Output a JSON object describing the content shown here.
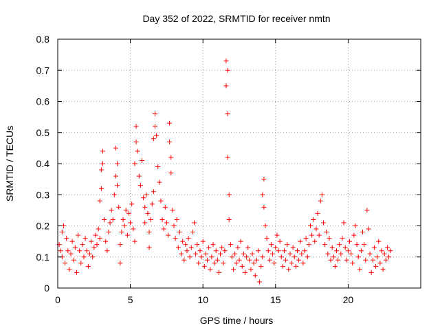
{
  "chart_data": {
    "type": "scatter",
    "title": "Day 352 of 2022, SRMTID for receiver nmtn",
    "xlabel": "GPS time / hours",
    "ylabel": "SRMTID / TECUs",
    "xlim": [
      0,
      25
    ],
    "ylim": [
      0,
      0.8
    ],
    "x_ticks": [
      0,
      5,
      10,
      15,
      20
    ],
    "x_tick_labels": [
      "0",
      "5",
      "10",
      "15",
      "20"
    ],
    "y_ticks": [
      0,
      0.1,
      0.2,
      0.3,
      0.4,
      0.5,
      0.6,
      0.7,
      0.8
    ],
    "y_tick_labels": [
      "0",
      "0.1",
      "0.2",
      "0.3",
      "0.4",
      "0.5",
      "0.6",
      "0.7",
      "0.8"
    ],
    "grid": true,
    "marker": "plus",
    "color": "#ff0000",
    "series": [
      {
        "name": "SRMTID",
        "points": [
          [
            0.1,
            0.14
          ],
          [
            0.2,
            0.12
          ],
          [
            0.3,
            0.1
          ],
          [
            0.3,
            0.18
          ],
          [
            0.4,
            0.2
          ],
          [
            0.5,
            0.08
          ],
          [
            0.6,
            0.16
          ],
          [
            0.7,
            0.12
          ],
          [
            0.8,
            0.06
          ],
          [
            0.9,
            0.11
          ],
          [
            1.0,
            0.15
          ],
          [
            1.1,
            0.09
          ],
          [
            1.2,
            0.13
          ],
          [
            1.3,
            0.05
          ],
          [
            1.4,
            0.17
          ],
          [
            1.5,
            0.12
          ],
          [
            1.6,
            0.08
          ],
          [
            1.7,
            0.14
          ],
          [
            1.8,
            0.1
          ],
          [
            1.9,
            0.16
          ],
          [
            2.0,
            0.12
          ],
          [
            2.1,
            0.07
          ],
          [
            2.2,
            0.11
          ],
          [
            2.3,
            0.15
          ],
          [
            2.4,
            0.1
          ],
          [
            2.5,
            0.13
          ],
          [
            2.6,
            0.17
          ],
          [
            2.7,
            0.14
          ],
          [
            2.8,
            0.19
          ],
          [
            2.9,
            0.16
          ],
          [
            2.9,
            0.28
          ],
          [
            3.0,
            0.32
          ],
          [
            3.0,
            0.38
          ],
          [
            3.1,
            0.44
          ],
          [
            3.1,
            0.4
          ],
          [
            3.2,
            0.22
          ],
          [
            3.3,
            0.15
          ],
          [
            3.4,
            0.12
          ],
          [
            3.5,
            0.18
          ],
          [
            3.6,
            0.21
          ],
          [
            3.7,
            0.25
          ],
          [
            3.8,
            0.22
          ],
          [
            3.9,
            0.3
          ],
          [
            4.0,
            0.36
          ],
          [
            4.0,
            0.45
          ],
          [
            4.1,
            0.4
          ],
          [
            4.1,
            0.33
          ],
          [
            4.2,
            0.26
          ],
          [
            4.3,
            0.14
          ],
          [
            4.3,
            0.08
          ],
          [
            4.4,
            0.18
          ],
          [
            4.5,
            0.22
          ],
          [
            4.6,
            0.2
          ],
          [
            4.7,
            0.25
          ],
          [
            4.8,
            0.17
          ],
          [
            4.9,
            0.24
          ],
          [
            5.0,
            0.21
          ],
          [
            5.1,
            0.27
          ],
          [
            5.2,
            0.19
          ],
          [
            5.3,
            0.15
          ],
          [
            5.3,
            0.4
          ],
          [
            5.4,
            0.47
          ],
          [
            5.4,
            0.52
          ],
          [
            5.5,
            0.44
          ],
          [
            5.6,
            0.36
          ],
          [
            5.7,
            0.33
          ],
          [
            5.8,
            0.41
          ],
          [
            5.9,
            0.29
          ],
          [
            6.0,
            0.26
          ],
          [
            6.0,
            0.21
          ],
          [
            6.1,
            0.3
          ],
          [
            6.2,
            0.24
          ],
          [
            6.3,
            0.18
          ],
          [
            6.3,
            0.13
          ],
          [
            6.4,
            0.22
          ],
          [
            6.5,
            0.27
          ],
          [
            6.6,
            0.31
          ],
          [
            6.6,
            0.48
          ],
          [
            6.7,
            0.56
          ],
          [
            6.7,
            0.52
          ],
          [
            6.8,
            0.49
          ],
          [
            6.9,
            0.39
          ],
          [
            7.0,
            0.34
          ],
          [
            7.1,
            0.28
          ],
          [
            7.2,
            0.22
          ],
          [
            7.3,
            0.19
          ],
          [
            7.4,
            0.26
          ],
          [
            7.5,
            0.21
          ],
          [
            7.6,
            0.17
          ],
          [
            7.7,
            0.47
          ],
          [
            7.7,
            0.53
          ],
          [
            7.8,
            0.42
          ],
          [
            7.8,
            0.37
          ],
          [
            7.9,
            0.25
          ],
          [
            8.0,
            0.2
          ],
          [
            8.1,
            0.16
          ],
          [
            8.2,
            0.22
          ],
          [
            8.3,
            0.13
          ],
          [
            8.4,
            0.18
          ],
          [
            8.5,
            0.11
          ],
          [
            8.6,
            0.15
          ],
          [
            8.7,
            0.09
          ],
          [
            8.8,
            0.14
          ],
          [
            8.9,
            0.12
          ],
          [
            9.0,
            0.16
          ],
          [
            9.1,
            0.1
          ],
          [
            9.2,
            0.13
          ],
          [
            9.3,
            0.18
          ],
          [
            9.4,
            0.21
          ],
          [
            9.5,
            0.11
          ],
          [
            9.6,
            0.14
          ],
          [
            9.7,
            0.08
          ],
          [
            9.8,
            0.12
          ],
          [
            9.9,
            0.1
          ],
          [
            10.0,
            0.15
          ],
          [
            10.1,
            0.07
          ],
          [
            10.2,
            0.11
          ],
          [
            10.3,
            0.09
          ],
          [
            10.4,
            0.13
          ],
          [
            10.5,
            0.06
          ],
          [
            10.6,
            0.1
          ],
          [
            10.7,
            0.14
          ],
          [
            10.8,
            0.08
          ],
          [
            10.9,
            0.12
          ],
          [
            11.0,
            0.09
          ],
          [
            11.1,
            0.05
          ],
          [
            11.2,
            0.11
          ],
          [
            11.3,
            0.13
          ],
          [
            11.4,
            0.08
          ],
          [
            11.5,
            0.12
          ],
          [
            11.6,
            0.65
          ],
          [
            11.6,
            0.73
          ],
          [
            11.7,
            0.7
          ],
          [
            11.7,
            0.56
          ],
          [
            11.7,
            0.42
          ],
          [
            11.8,
            0.3
          ],
          [
            11.8,
            0.22
          ],
          [
            11.9,
            0.14
          ],
          [
            12.0,
            0.1
          ],
          [
            12.1,
            0.06
          ],
          [
            12.2,
            0.11
          ],
          [
            12.3,
            0.08
          ],
          [
            12.4,
            0.13
          ],
          [
            12.5,
            0.09
          ],
          [
            12.6,
            0.15
          ],
          [
            12.7,
            0.07
          ],
          [
            12.8,
            0.11
          ],
          [
            12.9,
            0.05
          ],
          [
            13.0,
            0.1
          ],
          [
            13.1,
            0.13
          ],
          [
            13.2,
            0.09
          ],
          [
            13.3,
            0.06
          ],
          [
            13.4,
            0.11
          ],
          [
            13.5,
            0.08
          ],
          [
            13.6,
            0.04
          ],
          [
            13.7,
            0.09
          ],
          [
            13.8,
            0.12
          ],
          [
            13.9,
            0.02
          ],
          [
            14.0,
            0.07
          ],
          [
            14.1,
            0.1
          ],
          [
            14.1,
            0.3
          ],
          [
            14.2,
            0.35
          ],
          [
            14.2,
            0.26
          ],
          [
            14.3,
            0.2
          ],
          [
            14.4,
            0.16
          ],
          [
            14.5,
            0.12
          ],
          [
            14.6,
            0.09
          ],
          [
            14.7,
            0.14
          ],
          [
            14.8,
            0.11
          ],
          [
            14.9,
            0.08
          ],
          [
            15.0,
            0.13
          ],
          [
            15.1,
            0.17
          ],
          [
            15.2,
            0.12
          ],
          [
            15.3,
            0.15
          ],
          [
            15.4,
            0.1
          ],
          [
            15.5,
            0.07
          ],
          [
            15.6,
            0.12
          ],
          [
            15.7,
            0.09
          ],
          [
            15.8,
            0.14
          ],
          [
            15.9,
            0.06
          ],
          [
            16.0,
            0.11
          ],
          [
            16.1,
            0.08
          ],
          [
            16.2,
            0.13
          ],
          [
            16.3,
            0.1
          ],
          [
            16.4,
            0.07
          ],
          [
            16.5,
            0.12
          ],
          [
            16.6,
            0.09
          ],
          [
            16.7,
            0.15
          ],
          [
            16.8,
            0.11
          ],
          [
            16.9,
            0.08
          ],
          [
            17.0,
            0.12
          ],
          [
            17.1,
            0.16
          ],
          [
            17.2,
            0.1
          ],
          [
            17.3,
            0.14
          ],
          [
            17.4,
            0.2
          ],
          [
            17.5,
            0.17
          ],
          [
            17.6,
            0.22
          ],
          [
            17.7,
            0.15
          ],
          [
            17.8,
            0.19
          ],
          [
            17.9,
            0.24
          ],
          [
            18.0,
            0.17
          ],
          [
            18.1,
            0.28
          ],
          [
            18.2,
            0.3
          ],
          [
            18.3,
            0.21
          ],
          [
            18.4,
            0.14
          ],
          [
            18.5,
            0.18
          ],
          [
            18.6,
            0.11
          ],
          [
            18.7,
            0.16
          ],
          [
            18.8,
            0.09
          ],
          [
            18.9,
            0.13
          ],
          [
            19.0,
            0.1
          ],
          [
            19.1,
            0.07
          ],
          [
            19.2,
            0.12
          ],
          [
            19.3,
            0.09
          ],
          [
            19.4,
            0.14
          ],
          [
            19.5,
            0.11
          ],
          [
            19.6,
            0.16
          ],
          [
            19.7,
            0.21
          ],
          [
            19.8,
            0.13
          ],
          [
            19.9,
            0.09
          ],
          [
            20.0,
            0.12
          ],
          [
            20.1,
            0.15
          ],
          [
            20.2,
            0.11
          ],
          [
            20.3,
            0.08
          ],
          [
            20.4,
            0.17
          ],
          [
            20.5,
            0.2
          ],
          [
            20.6,
            0.14
          ],
          [
            20.7,
            0.1
          ],
          [
            20.8,
            0.06
          ],
          [
            20.9,
            0.12
          ],
          [
            21.0,
            0.18
          ],
          [
            21.1,
            0.14
          ],
          [
            21.2,
            0.09
          ],
          [
            21.3,
            0.25
          ],
          [
            21.4,
            0.19
          ],
          [
            21.5,
            0.11
          ],
          [
            21.6,
            0.05
          ],
          [
            21.7,
            0.09
          ],
          [
            21.8,
            0.13
          ],
          [
            21.9,
            0.07
          ],
          [
            22.0,
            0.1
          ],
          [
            22.1,
            0.15
          ],
          [
            22.2,
            0.08
          ],
          [
            22.3,
            0.12
          ],
          [
            22.4,
            0.06
          ],
          [
            22.5,
            0.11
          ],
          [
            22.6,
            0.09
          ],
          [
            22.7,
            0.13
          ],
          [
            22.8,
            0.1
          ],
          [
            22.9,
            0.12
          ]
        ]
      }
    ]
  }
}
